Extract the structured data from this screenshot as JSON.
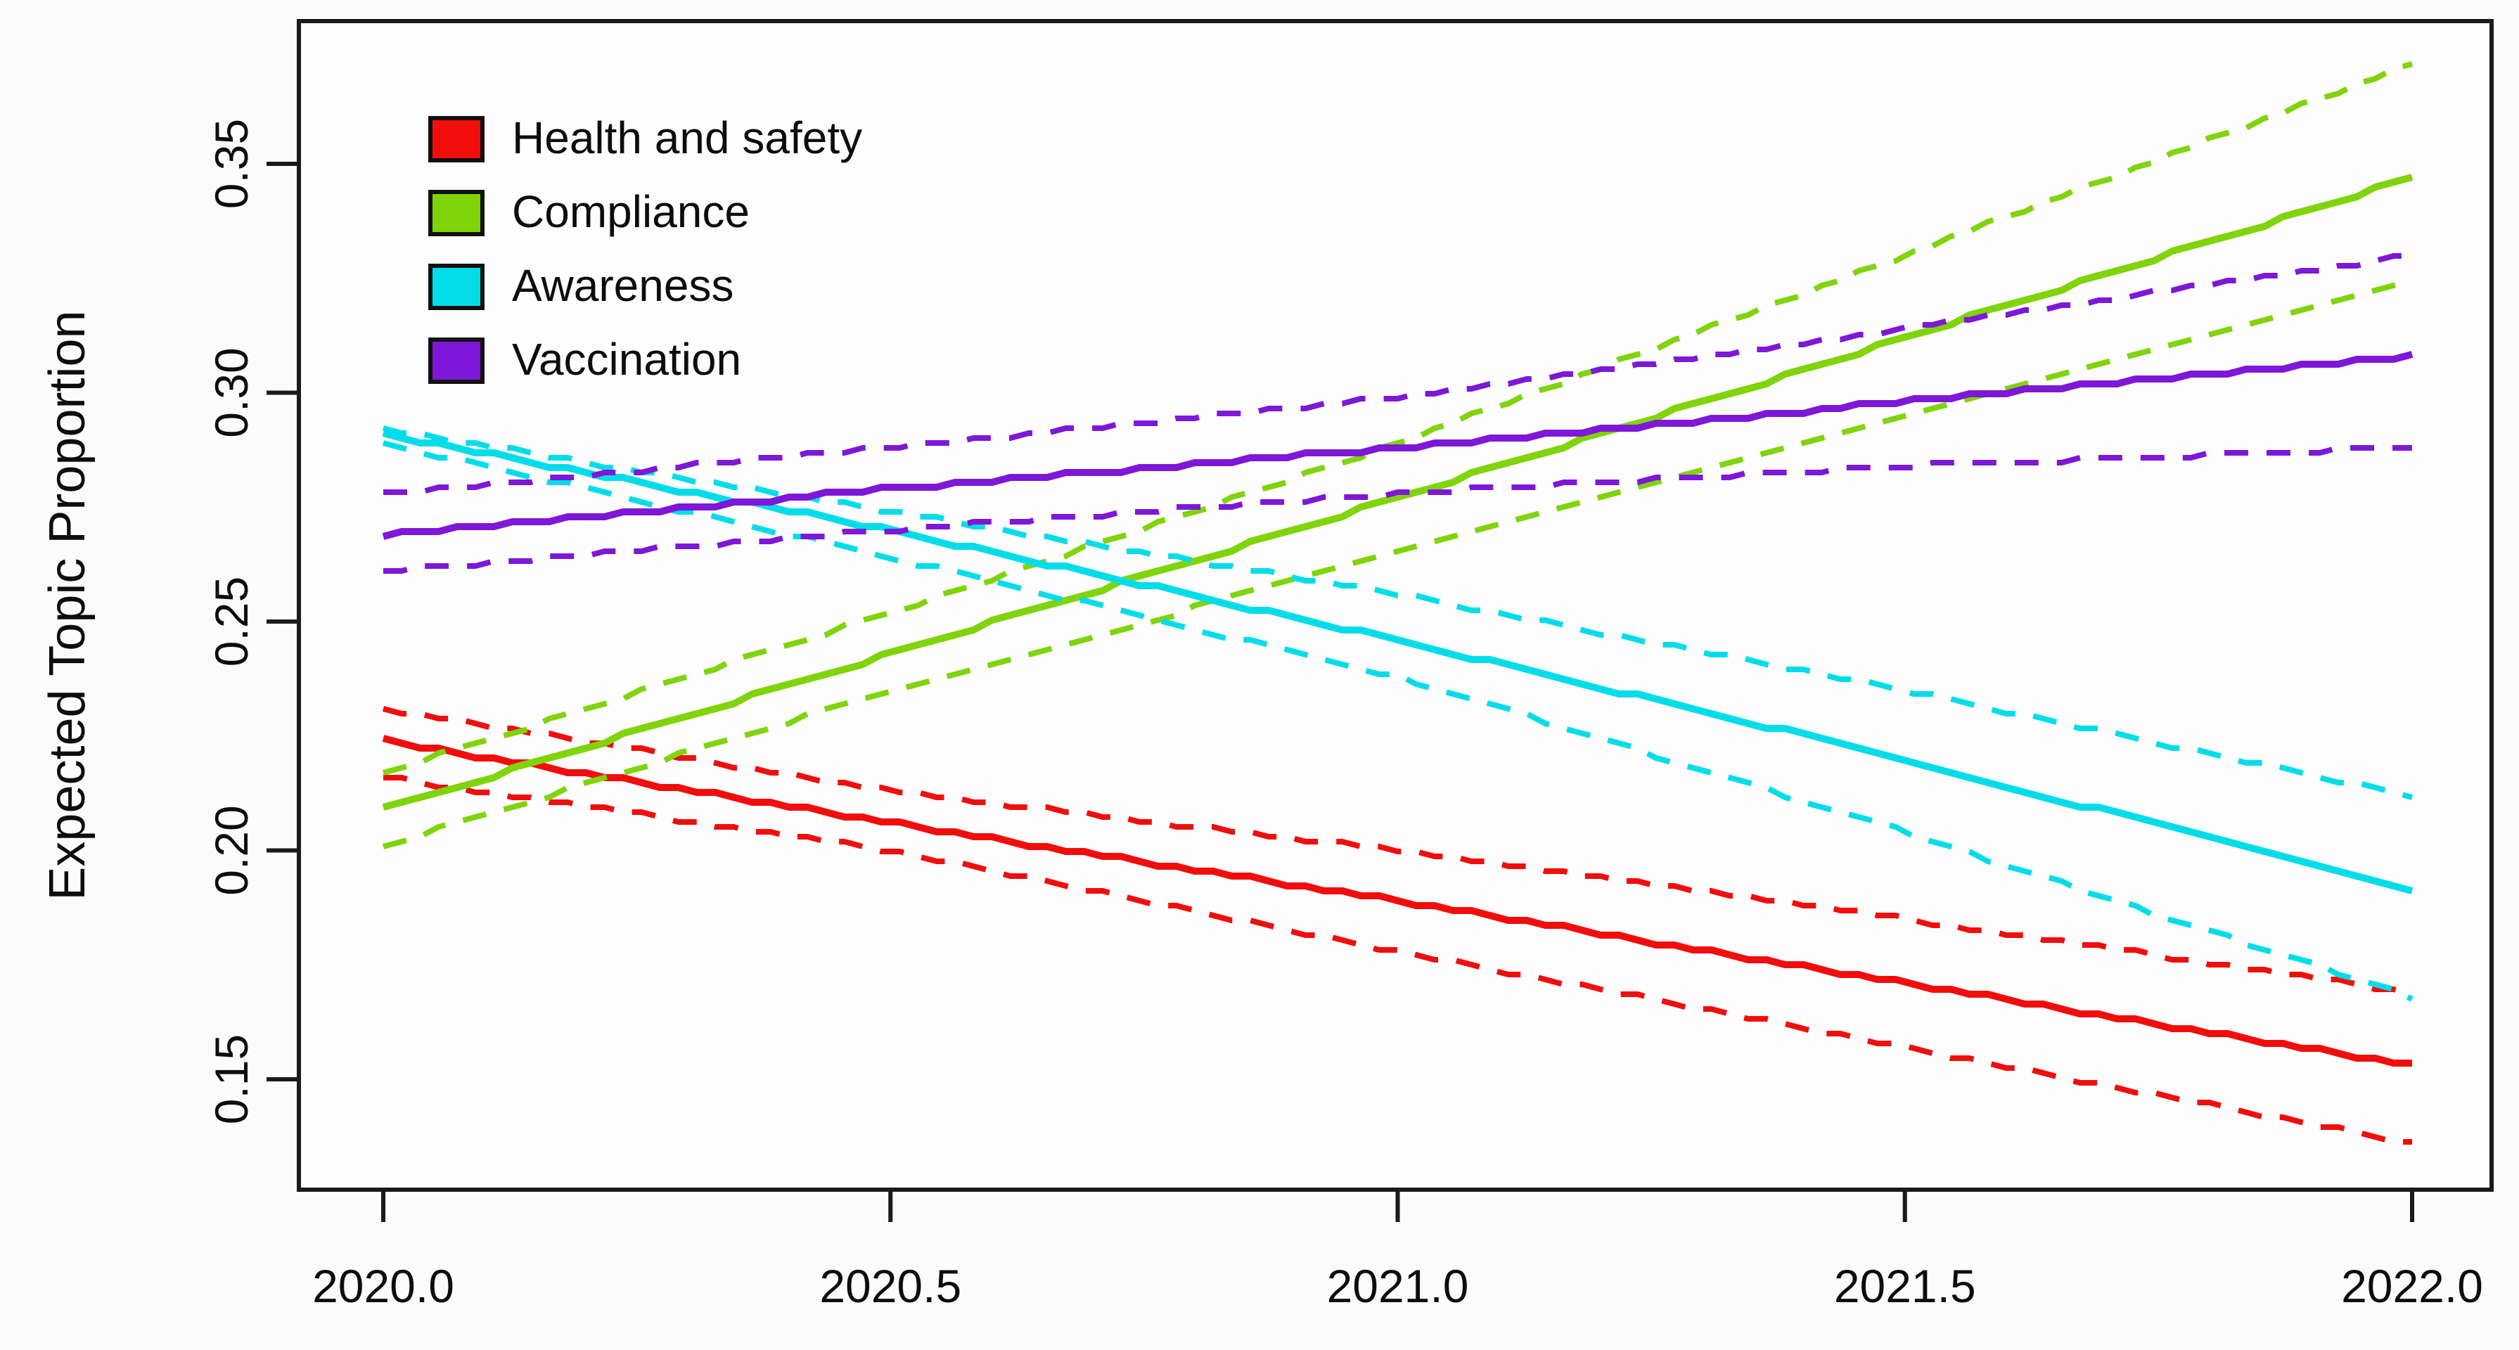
{
  "figure": {
    "background": "#fbfbfc",
    "plot_background": "#fdfdfd",
    "axis_color": "#1a1a1a",
    "text_color": "#0d0d0d",
    "y_axis_title": "Expected Topic Proportion"
  },
  "legend": {
    "position": "top-left",
    "items": [
      {
        "label": "Health and safety",
        "color": "#f20d0d"
      },
      {
        "label": "Compliance",
        "color": "#7fd40a"
      },
      {
        "label": "Awareness",
        "color": "#00dde9"
      },
      {
        "label": "Vaccination",
        "color": "#7e17d8"
      }
    ]
  },
  "chart_data": {
    "type": "line",
    "title": "",
    "xlabel": "",
    "ylabel": "Expected Topic Proportion",
    "x": [
      2020.0,
      2020.5,
      2021.0,
      2021.5,
      2022.0
    ],
    "x_ticks": [
      2020.0,
      2020.5,
      2021.0,
      2021.5,
      2022.0
    ],
    "x_tick_labels": [
      "2020.0",
      "2020.5",
      "2021.0",
      "2021.5",
      "2022.0"
    ],
    "y_ticks": [
      0.15,
      0.2,
      0.25,
      0.3,
      0.35
    ],
    "y_tick_labels": [
      "0.15",
      "0.20",
      "0.25",
      "0.30",
      "0.35"
    ],
    "xlim": [
      2019.917,
      2022.078
    ],
    "ylim": [
      0.1259,
      0.3812
    ],
    "grid": false,
    "legend_position": "top-left",
    "ci_style": "dashed",
    "series": [
      {
        "name": "Health and safety",
        "color": "#f20d0d",
        "mean": [
          0.224,
          0.206,
          0.189,
          0.171,
          0.153
        ],
        "ci_upper": [
          0.231,
          0.213,
          0.2,
          0.185,
          0.169
        ],
        "ci_lower": [
          0.216,
          0.2,
          0.178,
          0.157,
          0.136
        ]
      },
      {
        "name": "Compliance",
        "color": "#7fd40a",
        "mean": [
          0.209,
          0.243,
          0.277,
          0.312,
          0.347
        ],
        "ci_upper": [
          0.217,
          0.252,
          0.289,
          0.33,
          0.372
        ],
        "ci_lower": [
          0.201,
          0.235,
          0.265,
          0.295,
          0.325
        ]
      },
      {
        "name": "Awareness",
        "color": "#00dde9",
        "mean": [
          0.291,
          0.27,
          0.246,
          0.22,
          0.191
        ],
        "ci_upper": [
          0.292,
          0.274,
          0.256,
          0.235,
          0.212
        ],
        "ci_lower": [
          0.289,
          0.264,
          0.238,
          0.204,
          0.168
        ]
      },
      {
        "name": "Vaccination",
        "color": "#7e17d8",
        "mean": [
          0.269,
          0.279,
          0.288,
          0.298,
          0.308
        ],
        "ci_upper": [
          0.278,
          0.288,
          0.299,
          0.314,
          0.33
        ],
        "ci_lower": [
          0.261,
          0.27,
          0.278,
          0.284,
          0.288
        ]
      }
    ]
  }
}
